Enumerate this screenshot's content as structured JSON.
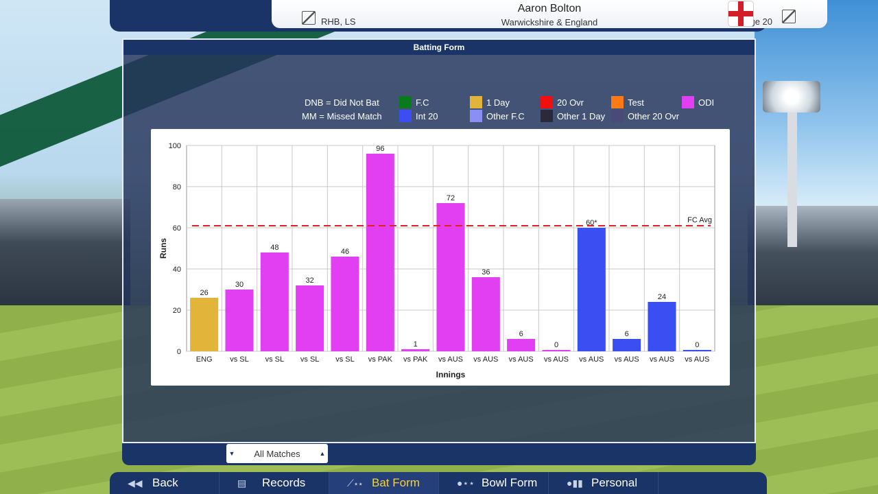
{
  "header": {
    "player_name": "Aaron Bolton",
    "player_team": "Warwickshire & England",
    "batting_style": "RHB, LS",
    "age": "Age 20"
  },
  "panel": {
    "title": "Batting Form"
  },
  "legend": {
    "notes": [
      "DNB = Did Not Bat",
      "MM = Missed Match"
    ],
    "items": [
      {
        "label": "F.C",
        "color": "#0a7a1e"
      },
      {
        "label": "1 Day",
        "color": "#e2b53a"
      },
      {
        "label": "20 Ovr",
        "color": "#f20f0f"
      },
      {
        "label": "Test",
        "color": "#ff7a12"
      },
      {
        "label": "ODI",
        "color": "#e23ff2"
      },
      {
        "label": "Int 20",
        "color": "#3a4ef2"
      },
      {
        "label": "Other F.C",
        "color": "#8a8ff5"
      },
      {
        "label": "Other 1 Day",
        "color": "#2a2a3c"
      },
      {
        "label": "Other 20 Ovr",
        "color": "#4a4a78"
      }
    ]
  },
  "chart_data": {
    "type": "bar",
    "xlabel": "Innings",
    "ylabel": "Runs",
    "ylim": [
      0,
      100
    ],
    "yticks": [
      0,
      20,
      40,
      60,
      80,
      100
    ],
    "grid": true,
    "categories": [
      "ENG",
      "vs SL",
      "vs SL",
      "vs SL",
      "vs SL",
      "vs PAK",
      "vs PAK",
      "vs AUS",
      "vs AUS",
      "vs AUS",
      "vs AUS",
      "vs AUS",
      "vs AUS",
      "vs AUS",
      "vs AUS"
    ],
    "values": [
      26,
      30,
      48,
      32,
      46,
      96,
      1,
      72,
      36,
      6,
      0,
      60,
      6,
      24,
      0
    ],
    "value_labels": [
      "26",
      "30",
      "48",
      "32",
      "46",
      "96",
      "1",
      "72",
      "36",
      "6",
      "0",
      "60*",
      "6",
      "24",
      "0"
    ],
    "bar_types": [
      "1 Day",
      "ODI",
      "ODI",
      "ODI",
      "ODI",
      "ODI",
      "ODI",
      "ODI",
      "ODI",
      "ODI",
      "ODI",
      "Int 20",
      "Int 20",
      "Int 20",
      "Int 20"
    ],
    "reference_line": {
      "label": "FC Avg",
      "value": 61,
      "color": "#e02020"
    }
  },
  "filter": {
    "selected": "All Matches"
  },
  "nav": {
    "items": [
      {
        "label": "Back",
        "icon": "back-icon",
        "active": false
      },
      {
        "label": "Records",
        "icon": "records-icon",
        "active": false
      },
      {
        "label": "Bat Form",
        "icon": "bat-form-icon",
        "active": true
      },
      {
        "label": "Bowl Form",
        "icon": "bowl-form-icon",
        "active": false
      },
      {
        "label": "Personal",
        "icon": "personal-icon",
        "active": false
      }
    ]
  }
}
